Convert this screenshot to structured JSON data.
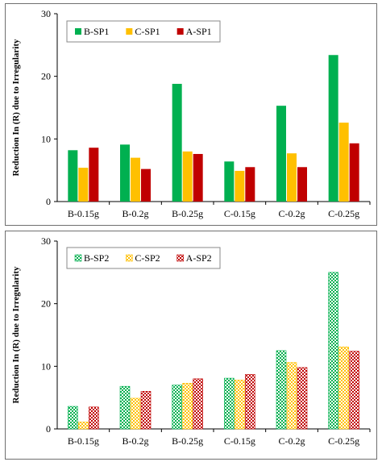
{
  "chart_data": [
    {
      "type": "bar",
      "title": "",
      "xlabel": "",
      "ylabel": "Reduction In (R) due to Irregularity",
      "ylim": [
        0,
        30
      ],
      "yticks": [
        0,
        10,
        20,
        30
      ],
      "grid": false,
      "legend_position": "top-left",
      "categories": [
        "B-0.15g",
        "B-0.2g",
        "B-0.25g",
        "C-0.15g",
        "C-0.2g",
        "C-0.25g"
      ],
      "series": [
        {
          "name": "B-SP1",
          "color": "#00b050",
          "pattern": "solid",
          "values": [
            8.2,
            9.1,
            18.8,
            6.4,
            15.3,
            23.4
          ]
        },
        {
          "name": "C-SP1",
          "color": "#ffc000",
          "pattern": "solid",
          "values": [
            5.4,
            7.0,
            8.0,
            4.9,
            7.7,
            12.6
          ]
        },
        {
          "name": "A-SP1",
          "color": "#c00000",
          "pattern": "solid",
          "values": [
            8.6,
            5.2,
            7.6,
            5.5,
            5.5,
            9.3
          ]
        }
      ]
    },
    {
      "type": "bar",
      "title": "",
      "xlabel": "",
      "ylabel": "Reduction In (R) due to Irregularity",
      "ylim": [
        0,
        30
      ],
      "yticks": [
        0,
        10,
        20,
        30
      ],
      "grid": false,
      "legend_position": "top-left",
      "categories": [
        "B-0.15g",
        "B-0.2g",
        "B-0.25g",
        "C-0.15g",
        "C-0.2g",
        "C-0.25g"
      ],
      "series": [
        {
          "name": "B-SP2",
          "color": "#00b050",
          "pattern": "checker",
          "values": [
            3.6,
            6.8,
            7.0,
            8.1,
            12.5,
            25.0
          ]
        },
        {
          "name": "C-SP2",
          "color": "#ffc000",
          "pattern": "checker",
          "values": [
            1.1,
            4.9,
            7.3,
            7.8,
            10.6,
            13.1
          ]
        },
        {
          "name": "A-SP2",
          "color": "#c00000",
          "pattern": "checker",
          "values": [
            3.5,
            6.0,
            8.0,
            8.7,
            9.8,
            12.4
          ]
        }
      ]
    }
  ]
}
